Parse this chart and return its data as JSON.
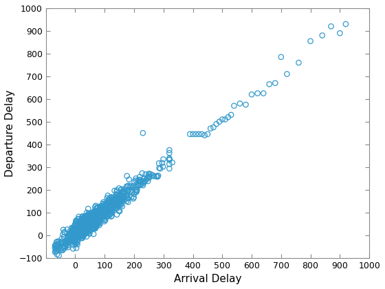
{
  "title": "",
  "xlabel": "Arrival Delay",
  "ylabel": "Departure Delay",
  "xlim": [
    -100,
    1000
  ],
  "ylim": [
    -100,
    1000
  ],
  "xticks": [
    -100,
    0,
    100,
    200,
    300,
    400,
    500,
    600,
    700,
    800,
    900,
    1000
  ],
  "yticks": [
    -100,
    0,
    100,
    200,
    300,
    400,
    500,
    600,
    700,
    800,
    900,
    1000
  ],
  "marker_color": "#3399cc",
  "marker_size": 28,
  "marker_linewidth": 0.9,
  "background_color": "#ffffff",
  "seed": 7,
  "xlabel_fontsize": 11,
  "ylabel_fontsize": 11,
  "tick_labelsize": 9
}
